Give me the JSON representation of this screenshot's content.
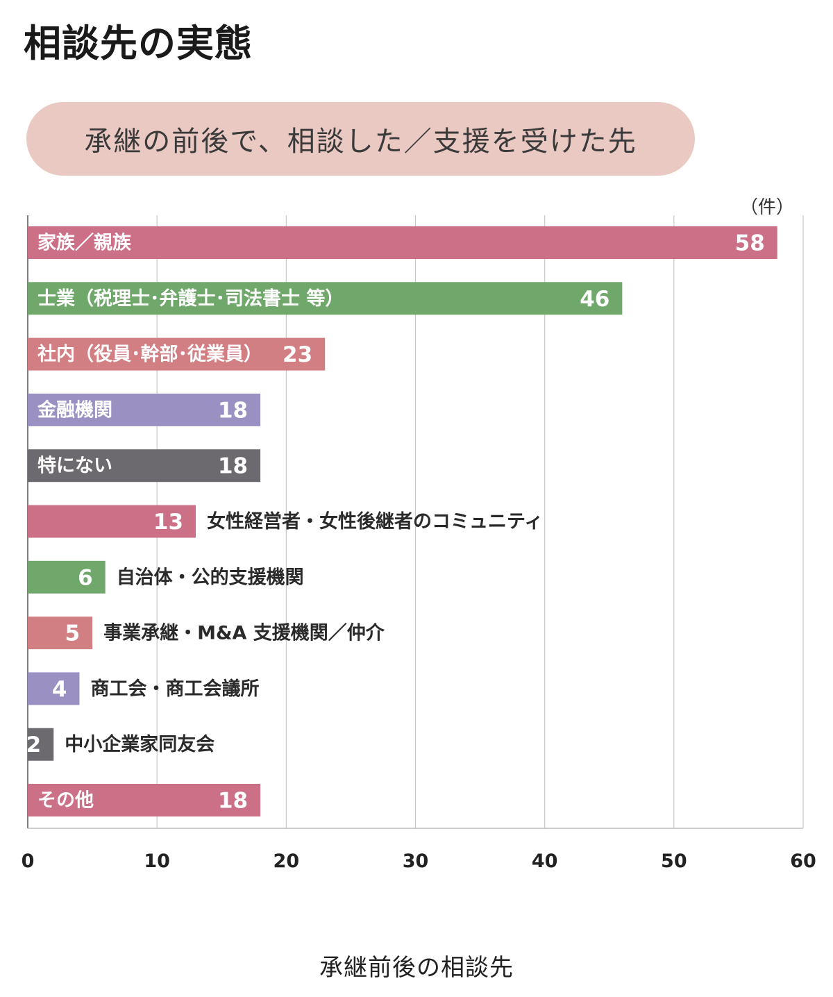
{
  "title": "相談先の実態",
  "subtitle": "承継の前後で、相談した／支援を受けた先",
  "unit": "（件）",
  "x_axis_title": "承継前後の相談先",
  "chart_data": {
    "type": "bar",
    "orientation": "horizontal",
    "title": "相談先の実態",
    "subtitle": "承継の前後で、相談した／支援を受けた先",
    "xlabel": "承継前後の相談先",
    "unit": "（件）",
    "xlim": [
      0,
      60
    ],
    "xticks": [
      0,
      10,
      20,
      30,
      40,
      50,
      60
    ],
    "grid": "vertical",
    "categories": [
      "家族／親族",
      "士業（税理士･弁護士･司法書士 等）",
      "社内（役員･幹部･従業員）",
      "金融機関",
      "特にない",
      "女性経営者・女性後継者のコミュニティ",
      "自治体・公的支援機関",
      "事業承継・M&A 支援機関／仲介",
      "商工会・商工会議所",
      "中小企業家同友会",
      "その他"
    ],
    "values": [
      58,
      46,
      23,
      18,
      18,
      13,
      6,
      5,
      4,
      2,
      18
    ],
    "colors": [
      "#cc7087",
      "#6fa86a",
      "#d27f84",
      "#9a91c2",
      "#6d6a6f",
      "#cc7087",
      "#6fa86a",
      "#d27f84",
      "#9a91c2",
      "#6d6a6f",
      "#cc7087"
    ],
    "label_inside": [
      true,
      true,
      true,
      true,
      true,
      false,
      false,
      false,
      false,
      false,
      true
    ]
  }
}
